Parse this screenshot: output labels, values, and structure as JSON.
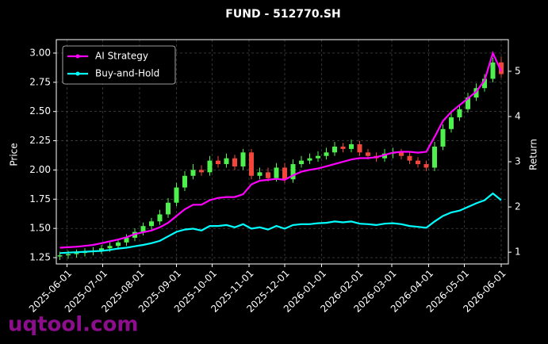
{
  "chart_data": {
    "type": "candlestick",
    "title": "FUND - 512770.SH",
    "ylabel": "Price",
    "y2label": "Return",
    "watermark": "uqtool.com",
    "grid": true,
    "legend": "upper left",
    "up_color": "#4ef04e",
    "down_color": "#f0463c",
    "x": [
      "2025-05-26",
      "2025-06-02",
      "2025-06-09",
      "2025-06-16",
      "2025-06-23",
      "2025-06-30",
      "2025-07-07",
      "2025-07-14",
      "2025-07-21",
      "2025-07-28",
      "2025-08-04",
      "2025-08-11",
      "2025-08-18",
      "2025-08-25",
      "2025-09-01",
      "2025-09-08",
      "2025-09-15",
      "2025-09-22",
      "2025-09-29",
      "2025-10-06",
      "2025-10-13",
      "2025-10-20",
      "2025-10-27",
      "2025-11-03",
      "2025-11-10",
      "2025-11-17",
      "2025-11-24",
      "2025-12-01",
      "2025-12-08",
      "2025-12-15",
      "2025-12-22",
      "2025-12-29",
      "2026-01-05",
      "2026-01-12",
      "2026-01-19",
      "2026-01-26",
      "2026-02-02",
      "2026-02-09",
      "2026-02-16",
      "2026-02-23",
      "2026-03-02",
      "2026-03-09",
      "2026-03-16",
      "2026-03-23",
      "2026-03-30",
      "2026-04-06",
      "2026-04-13",
      "2026-04-20",
      "2026-04-27",
      "2026-05-04",
      "2026-05-11",
      "2026-05-18",
      "2026-05-25",
      "2026-06-01"
    ],
    "open": [
      1.26,
      1.27,
      1.28,
      1.29,
      1.3,
      1.31,
      1.33,
      1.35,
      1.38,
      1.42,
      1.47,
      1.52,
      1.56,
      1.62,
      1.72,
      1.85,
      1.95,
      2.0,
      1.98,
      2.08,
      2.05,
      2.1,
      2.03,
      2.15,
      1.95,
      1.98,
      1.93,
      2.02,
      1.92,
      2.05,
      2.08,
      2.1,
      2.12,
      2.15,
      2.2,
      2.18,
      2.22,
      2.15,
      2.12,
      2.1,
      2.14,
      2.15,
      2.12,
      2.08,
      2.05,
      2.02,
      2.2,
      2.35,
      2.45,
      2.52,
      2.62,
      2.7,
      2.78,
      2.92
    ],
    "high": [
      1.3,
      1.31,
      1.32,
      1.33,
      1.34,
      1.36,
      1.38,
      1.41,
      1.45,
      1.5,
      1.55,
      1.59,
      1.66,
      1.76,
      1.89,
      1.99,
      2.05,
      2.04,
      2.12,
      2.12,
      2.14,
      2.13,
      2.18,
      2.18,
      2.02,
      2.02,
      2.06,
      2.06,
      2.09,
      2.12,
      2.14,
      2.16,
      2.19,
      2.24,
      2.23,
      2.26,
      2.25,
      2.18,
      2.15,
      2.18,
      2.19,
      2.18,
      2.15,
      2.11,
      2.08,
      2.24,
      2.39,
      2.49,
      2.56,
      2.66,
      2.74,
      2.82,
      2.96,
      2.97
    ],
    "low": [
      1.23,
      1.24,
      1.25,
      1.26,
      1.27,
      1.28,
      1.3,
      1.32,
      1.35,
      1.39,
      1.44,
      1.49,
      1.53,
      1.59,
      1.69,
      1.82,
      1.92,
      1.95,
      1.95,
      2.02,
      2.02,
      2.0,
      2.0,
      1.92,
      1.92,
      1.9,
      1.9,
      1.89,
      1.89,
      2.02,
      2.05,
      2.07,
      2.09,
      2.12,
      2.15,
      2.15,
      2.12,
      2.09,
      2.07,
      2.07,
      2.1,
      2.09,
      2.05,
      2.02,
      1.99,
      1.99,
      2.17,
      2.32,
      2.42,
      2.49,
      2.59,
      2.67,
      2.75,
      2.79
    ],
    "close": [
      1.27,
      1.28,
      1.29,
      1.3,
      1.31,
      1.33,
      1.35,
      1.38,
      1.42,
      1.47,
      1.52,
      1.56,
      1.62,
      1.72,
      1.85,
      1.95,
      2.0,
      1.98,
      2.08,
      2.05,
      2.1,
      2.03,
      2.15,
      1.95,
      1.98,
      1.93,
      2.02,
      1.92,
      2.05,
      2.08,
      2.1,
      2.12,
      2.15,
      2.2,
      2.18,
      2.22,
      2.15,
      2.12,
      2.1,
      2.14,
      2.15,
      2.12,
      2.08,
      2.05,
      2.02,
      2.2,
      2.35,
      2.45,
      2.52,
      2.62,
      2.7,
      2.78,
      2.92,
      2.82
    ],
    "series": [
      {
        "name": "AI Strategy",
        "color": "#ff00ff",
        "axis": "y2",
        "values": [
          1.1,
          1.11,
          1.12,
          1.14,
          1.16,
          1.2,
          1.24,
          1.28,
          1.33,
          1.4,
          1.44,
          1.48,
          1.55,
          1.65,
          1.8,
          1.95,
          2.05,
          2.05,
          2.15,
          2.2,
          2.22,
          2.22,
          2.28,
          2.5,
          2.58,
          2.6,
          2.62,
          2.6,
          2.7,
          2.78,
          2.82,
          2.85,
          2.9,
          2.95,
          3.0,
          3.05,
          3.08,
          3.08,
          3.1,
          3.15,
          3.2,
          3.22,
          3.22,
          3.2,
          3.22,
          3.55,
          3.9,
          4.1,
          4.25,
          4.4,
          4.55,
          4.8,
          5.4,
          5.0
        ]
      },
      {
        "name": "Buy-and-Hold",
        "color": "#00ffff",
        "axis": "y2",
        "values": [
          0.98,
          0.99,
          1.0,
          1.01,
          1.02,
          1.03,
          1.05,
          1.08,
          1.1,
          1.13,
          1.16,
          1.2,
          1.25,
          1.35,
          1.45,
          1.5,
          1.52,
          1.48,
          1.58,
          1.58,
          1.6,
          1.55,
          1.62,
          1.52,
          1.55,
          1.5,
          1.58,
          1.52,
          1.6,
          1.62,
          1.62,
          1.64,
          1.65,
          1.68,
          1.66,
          1.68,
          1.63,
          1.62,
          1.6,
          1.63,
          1.64,
          1.62,
          1.58,
          1.56,
          1.54,
          1.68,
          1.8,
          1.88,
          1.92,
          2.0,
          2.08,
          2.15,
          2.3,
          2.15
        ]
      }
    ],
    "xlim": [
      "2025-05-23",
      "2026-06-07"
    ],
    "xticks": [
      "2025-06-01",
      "2025-07-01",
      "2025-08-01",
      "2025-09-01",
      "2025-10-01",
      "2025-11-01",
      "2025-12-01",
      "2026-01-01",
      "2026-02-01",
      "2026-03-01",
      "2026-04-01",
      "2026-05-01",
      "2026-06-01"
    ],
    "ylim": [
      1.196,
      3.115
    ],
    "yticks": [
      1.25,
      {
        "value": 1.5,
        "label": "1.50"
      },
      1.75,
      {
        "value": 2,
        "label": "2.00"
      },
      2.25,
      {
        "value": 2.5,
        "label": "2.50"
      },
      2.75,
      {
        "value": 3,
        "label": "3.00"
      }
    ],
    "y2lim": [
      0.74,
      5.7
    ],
    "y2ticks": [
      1,
      2,
      3,
      4,
      5
    ]
  }
}
